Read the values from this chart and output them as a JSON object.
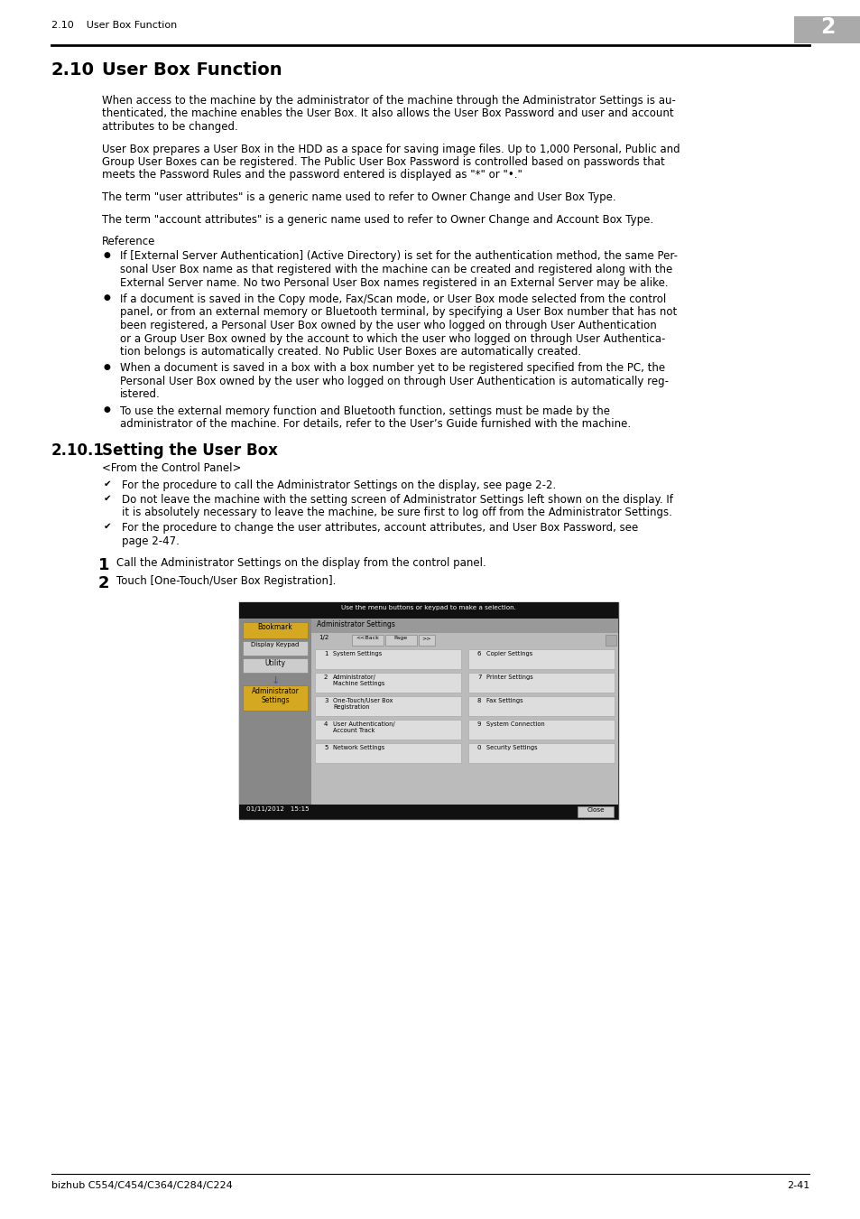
{
  "header_left": "2.10    User Box Function",
  "header_number": "2",
  "footer_left": "bizhub C554/C454/C364/C284/C224",
  "footer_right": "2-41",
  "bg_color": "#ffffff"
}
